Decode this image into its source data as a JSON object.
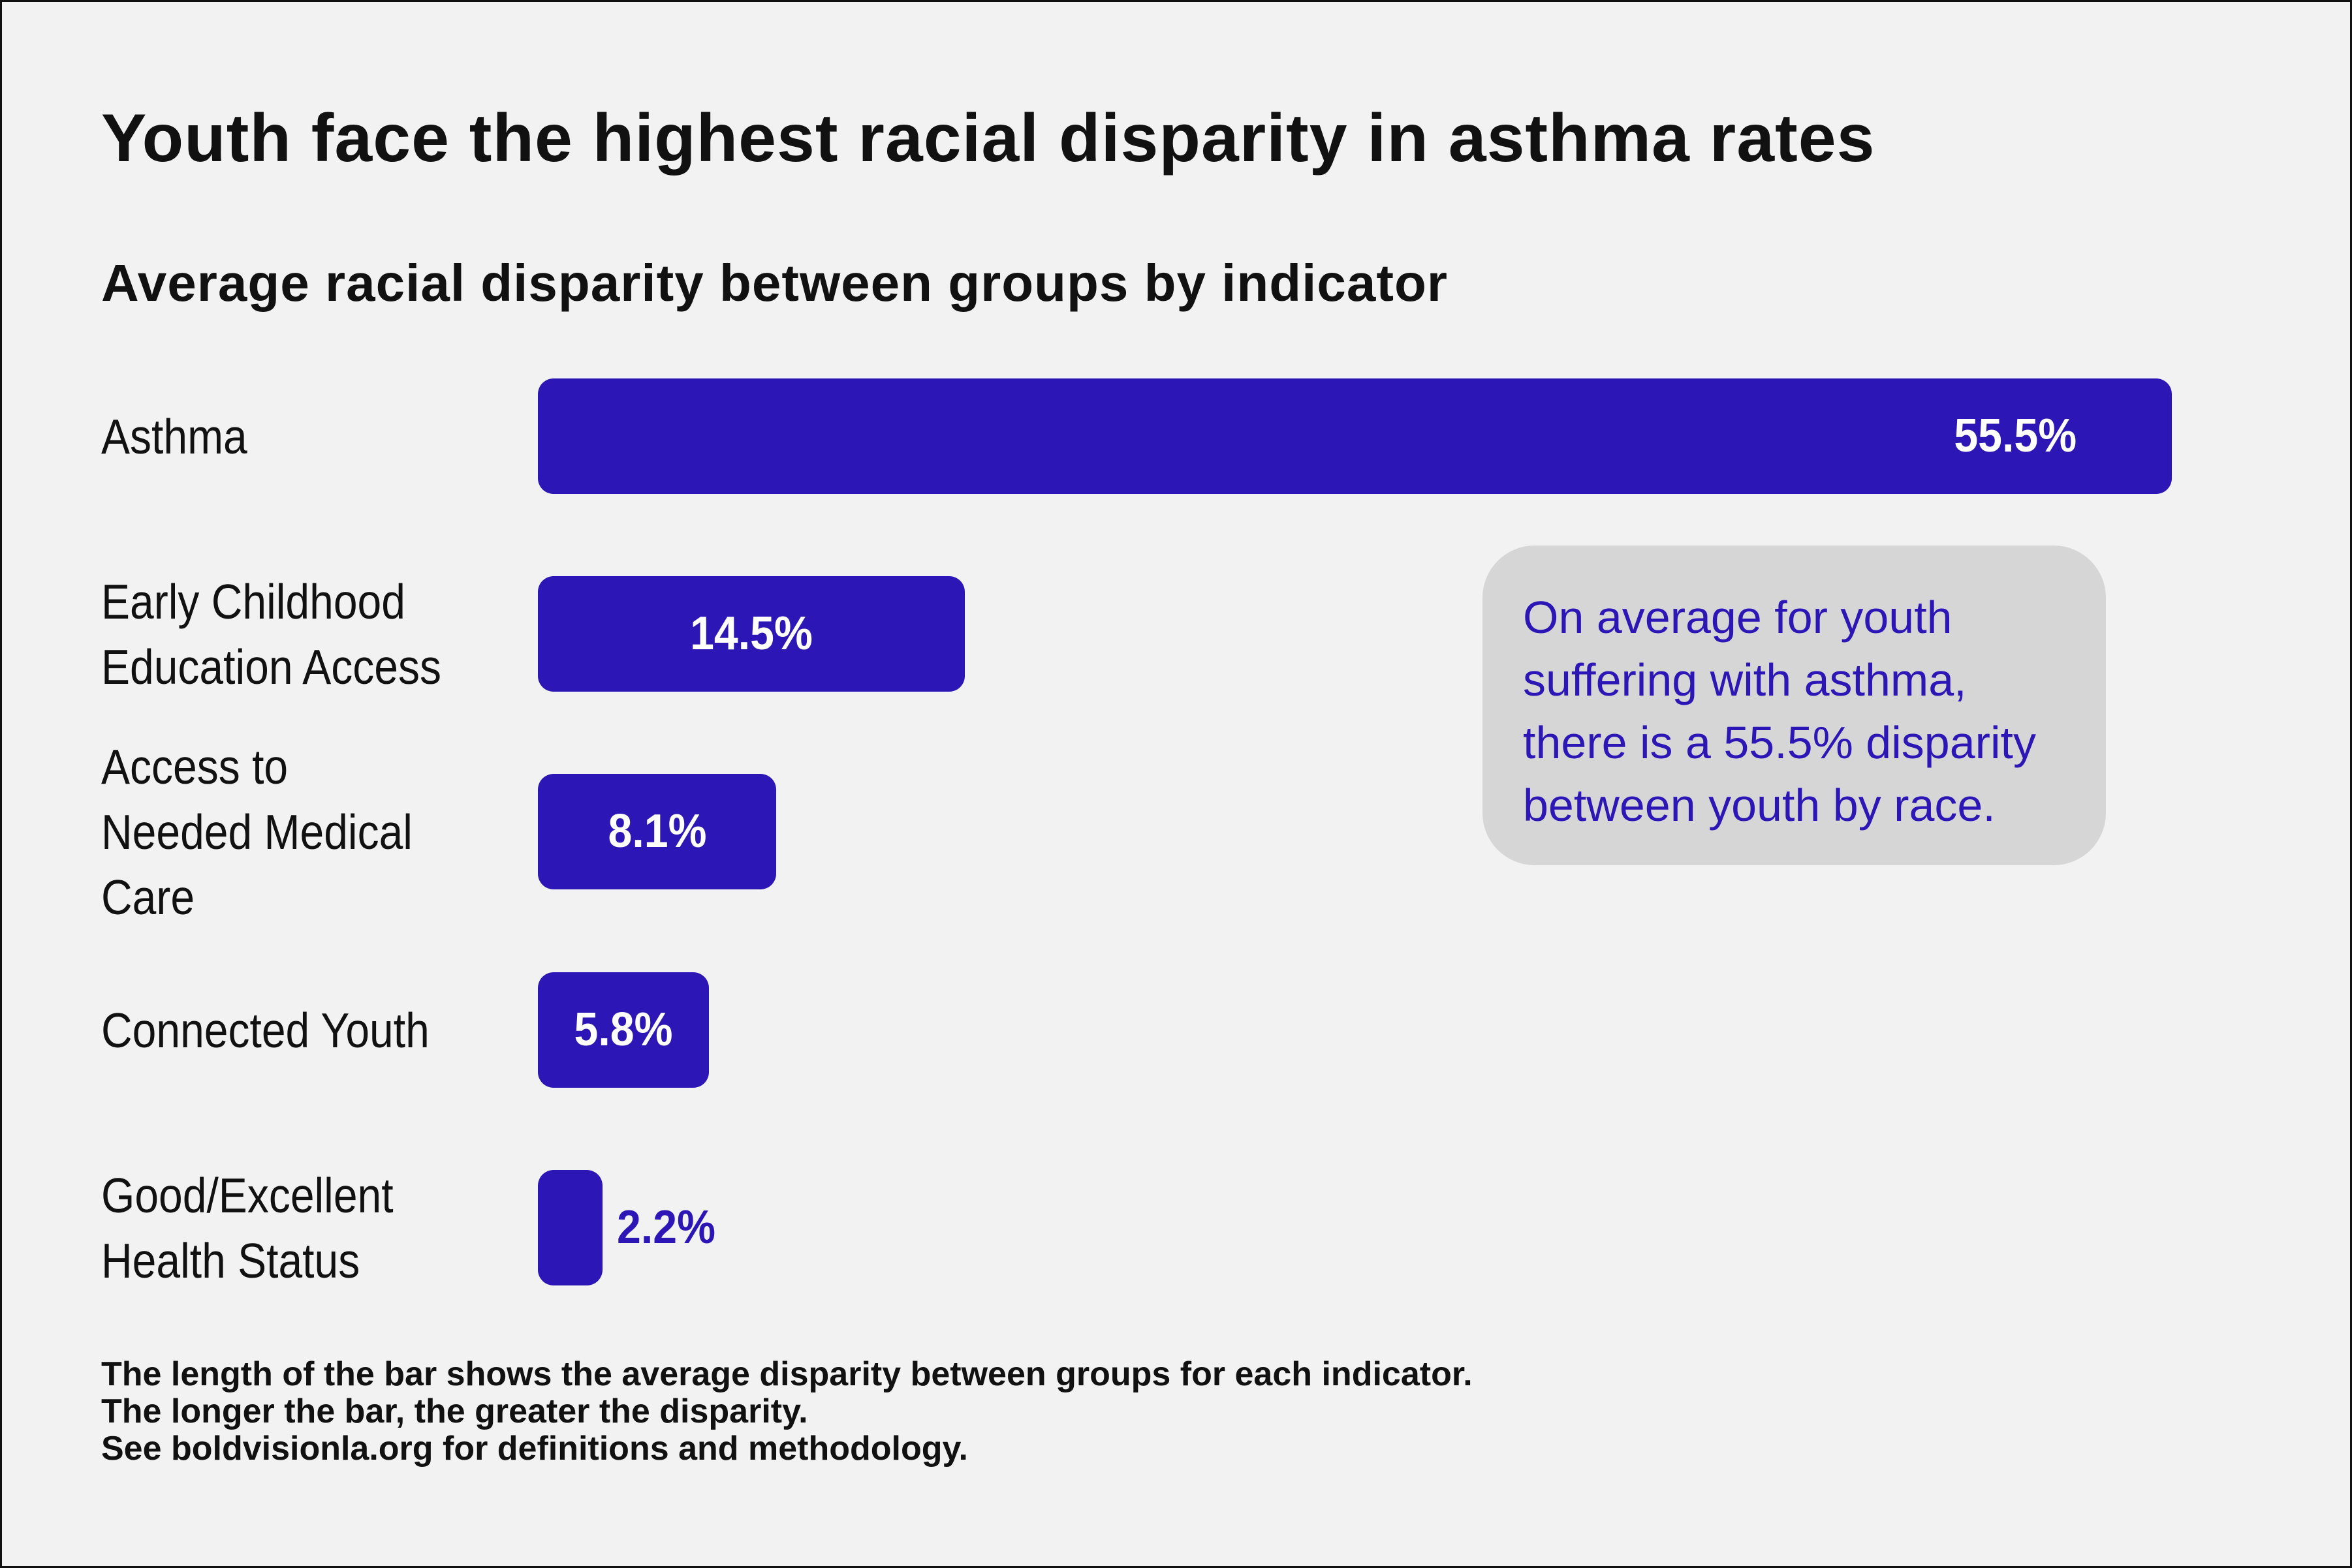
{
  "title": "Youth face the highest racial disparity in asthma rates",
  "subtitle": "Average racial disparity between groups by indicator",
  "colors": {
    "bar": "#2c16b5",
    "background": "#f2f2f2",
    "callout_bg": "#d6d6d6",
    "callout_text": "#2c16b5"
  },
  "chart_data": {
    "type": "bar",
    "orientation": "horizontal",
    "title": "Youth face the highest racial disparity in asthma rates",
    "subtitle": "Average racial disparity between groups by indicator",
    "categories": [
      "Asthma",
      "Early Childhood Education Access",
      "Access to Needed Medical Care",
      "Connected Youth",
      "Good/Excellent Health Status"
    ],
    "category_lines": [
      [
        "Asthma"
      ],
      [
        "Early Childhood",
        "Education Access"
      ],
      [
        "Access to",
        "Needed Medical",
        "Care"
      ],
      [
        "Connected Youth"
      ],
      [
        "Good/Excellent",
        "Health Status"
      ]
    ],
    "values": [
      55.5,
      14.5,
      8.1,
      5.8,
      2.2
    ],
    "value_labels": [
      "55.5%",
      "14.5%",
      "8.1%",
      "5.8%",
      "2.2%"
    ],
    "unit": "%",
    "xlim": [
      0,
      55.5
    ],
    "grid": false,
    "legend": "none"
  },
  "callout": {
    "lines": [
      "On average for youth",
      "suffering with asthma,",
      "there is a 55.5% disparity",
      "between youth by race."
    ]
  },
  "footnote": {
    "lines": [
      "The length of the bar shows the average disparity between groups for each indicator.",
      "The longer the bar, the greater the disparity.",
      "See boldvisionla.org for definitions and methodology."
    ]
  }
}
